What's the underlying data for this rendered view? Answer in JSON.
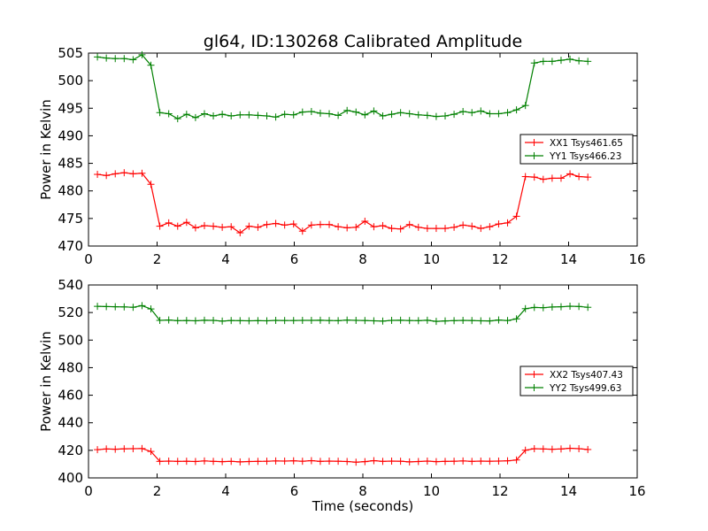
{
  "figure": {
    "title": "gl64, ID:130268 Calibrated Amplitude"
  },
  "chart_data": [
    {
      "type": "line",
      "title": "gl64, ID:130268 Calibrated Amplitude",
      "xlabel": "",
      "ylabel": "Power in Kelvin",
      "xlim": [
        0,
        16
      ],
      "ylim": [
        470,
        505
      ],
      "xticks": [
        "0",
        "2",
        "4",
        "6",
        "8",
        "10",
        "12",
        "14",
        "16"
      ],
      "yticks": [
        "470",
        "475",
        "480",
        "485",
        "490",
        "495",
        "500",
        "505"
      ],
      "legend": "right",
      "grid": false,
      "x": [
        0.26,
        0.52,
        0.78,
        1.04,
        1.3,
        1.56,
        1.82,
        2.08,
        2.34,
        2.6,
        2.86,
        3.12,
        3.38,
        3.64,
        3.9,
        4.16,
        4.42,
        4.68,
        4.94,
        5.2,
        5.46,
        5.72,
        5.98,
        6.24,
        6.5,
        6.76,
        7.02,
        7.28,
        7.54,
        7.8,
        8.06,
        8.32,
        8.58,
        8.84,
        9.1,
        9.36,
        9.62,
        9.88,
        10.14,
        10.4,
        10.66,
        10.92,
        11.18,
        11.44,
        11.7,
        11.96,
        12.22,
        12.48,
        12.74,
        13.0,
        13.26,
        13.52,
        13.78,
        14.04,
        14.3,
        14.56
      ],
      "series": [
        {
          "name": "XX1 Tsys461.65",
          "color": "#ff0000",
          "values": [
            483.0,
            482.8,
            483.1,
            483.3,
            483.1,
            483.2,
            481.2,
            473.6,
            474.2,
            473.6,
            474.3,
            473.3,
            473.7,
            473.6,
            473.4,
            473.5,
            472.4,
            473.6,
            473.4,
            473.9,
            474.1,
            473.8,
            474.0,
            472.7,
            473.8,
            473.9,
            473.9,
            473.5,
            473.3,
            473.4,
            474.5,
            473.5,
            473.7,
            473.2,
            473.1,
            473.9,
            473.4,
            473.2,
            473.2,
            473.2,
            473.4,
            473.8,
            473.6,
            473.2,
            473.5,
            474.0,
            474.2,
            475.4,
            482.6,
            482.5,
            482.1,
            482.3,
            482.3,
            483.1,
            482.6,
            482.5
          ]
        },
        {
          "name": "YY1 Tsys466.23",
          "color": "#008000",
          "values": [
            504.3,
            504.1,
            504.0,
            504.0,
            503.8,
            504.7,
            502.8,
            494.2,
            494.0,
            493.1,
            493.9,
            493.3,
            494.0,
            493.6,
            493.9,
            493.6,
            493.8,
            493.8,
            493.7,
            493.6,
            493.4,
            493.9,
            493.8,
            494.3,
            494.4,
            494.1,
            494.0,
            493.7,
            494.6,
            494.3,
            493.8,
            494.5,
            493.6,
            493.9,
            494.2,
            494.0,
            493.8,
            493.7,
            493.5,
            493.6,
            493.9,
            494.4,
            494.2,
            494.5,
            494.0,
            494.0,
            494.2,
            494.7,
            495.5,
            503.2,
            503.5,
            503.5,
            503.7,
            503.9,
            503.6,
            503.5
          ]
        }
      ]
    },
    {
      "type": "line",
      "title": "",
      "xlabel": "Time (seconds)",
      "ylabel": "Power in Kelvin",
      "xlim": [
        0,
        16
      ],
      "ylim": [
        400,
        540
      ],
      "xticks": [
        "0",
        "2",
        "4",
        "6",
        "8",
        "10",
        "12",
        "14",
        "16"
      ],
      "yticks": [
        "400",
        "420",
        "440",
        "460",
        "480",
        "500",
        "520",
        "540"
      ],
      "legend": "right",
      "grid": false,
      "x": [
        0.26,
        0.52,
        0.78,
        1.04,
        1.3,
        1.56,
        1.82,
        2.08,
        2.34,
        2.6,
        2.86,
        3.12,
        3.38,
        3.64,
        3.9,
        4.16,
        4.42,
        4.68,
        4.94,
        5.2,
        5.46,
        5.72,
        5.98,
        6.24,
        6.5,
        6.76,
        7.02,
        7.28,
        7.54,
        7.8,
        8.06,
        8.32,
        8.58,
        8.84,
        9.1,
        9.36,
        9.62,
        9.88,
        10.14,
        10.4,
        10.66,
        10.92,
        11.18,
        11.44,
        11.7,
        11.96,
        12.22,
        12.48,
        12.74,
        13.0,
        13.26,
        13.52,
        13.78,
        14.04,
        14.3,
        14.56
      ],
      "series": [
        {
          "name": "XX2 Tsys407.43",
          "color": "#ff0000",
          "values": [
            420.5,
            421.0,
            420.8,
            421.1,
            421.2,
            421.3,
            419.2,
            412.0,
            412.2,
            412.0,
            412.1,
            411.9,
            412.3,
            412.0,
            411.8,
            412.0,
            411.6,
            411.9,
            412.0,
            412.1,
            412.3,
            412.2,
            412.4,
            412.1,
            412.5,
            412.0,
            412.2,
            412.1,
            411.9,
            411.4,
            411.8,
            412.5,
            412.0,
            412.2,
            412.1,
            411.6,
            411.9,
            412.2,
            411.8,
            412.0,
            412.1,
            412.3,
            412.0,
            412.2,
            412.1,
            412.2,
            412.4,
            413.0,
            420.1,
            421.2,
            421.0,
            420.8,
            421.0,
            421.5,
            421.2,
            420.6
          ]
        },
        {
          "name": "YY2 Tsys499.63",
          "color": "#008000",
          "values": [
            524.5,
            524.3,
            524.2,
            524.1,
            523.8,
            525.0,
            522.6,
            514.3,
            514.6,
            514.1,
            514.2,
            514.0,
            514.4,
            514.3,
            513.8,
            514.2,
            514.1,
            514.0,
            514.1,
            514.0,
            514.3,
            514.2,
            514.2,
            514.3,
            514.3,
            514.4,
            514.2,
            514.1,
            514.5,
            514.3,
            514.2,
            514.0,
            513.8,
            514.3,
            514.4,
            514.2,
            514.1,
            514.4,
            513.6,
            513.9,
            514.1,
            514.3,
            514.2,
            514.0,
            513.9,
            514.6,
            514.2,
            515.4,
            522.8,
            523.7,
            523.5,
            524.0,
            524.2,
            524.6,
            524.4,
            523.8
          ]
        }
      ]
    }
  ]
}
